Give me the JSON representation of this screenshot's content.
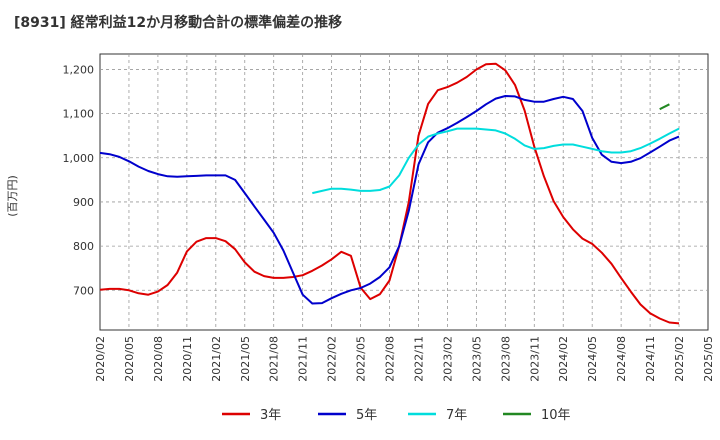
{
  "title": "[8931]  経常利益12か月移動合計の標準偏差の推移",
  "chart_data": {
    "type": "line",
    "title": "[8931]  経常利益12か月移動合計の標準偏差の推移",
    "ylabel": "(百万円)",
    "ylim": [
      610,
      1235
    ],
    "yticks": [
      700,
      800,
      900,
      1000,
      1100,
      1200
    ],
    "ytick_labels": [
      "700",
      "800",
      "900",
      "1,000",
      "1,100",
      "1,200"
    ],
    "x_ticks": [
      "2020/02",
      "2020/05",
      "2020/08",
      "2020/11",
      "2021/02",
      "2021/05",
      "2021/08",
      "2021/11",
      "2022/02",
      "2022/05",
      "2022/08",
      "2022/11",
      "2023/02",
      "2023/05",
      "2023/08",
      "2023/11",
      "2024/02",
      "2024/05",
      "2024/08",
      "2024/11",
      "2025/02",
      "2025/05"
    ],
    "x_start": "2020/02",
    "x_months": 63,
    "grid": true,
    "legend_position": "bottom",
    "series": [
      {
        "name": "3年",
        "color": "#dd0000",
        "start": "2020/02",
        "values": [
          701,
          703,
          703,
          700,
          693,
          690,
          697,
          712,
          740,
          788,
          810,
          818,
          818,
          811,
          793,
          763,
          742,
          732,
          728,
          728,
          730,
          734,
          744,
          756,
          770,
          787,
          778,
          706,
          680,
          691,
          722,
          800,
          900,
          1050,
          1122,
          1153,
          1160,
          1170,
          1183,
          1200,
          1212,
          1213,
          1198,
          1165,
          1107,
          1025,
          958,
          902,
          866,
          838,
          817,
          805,
          785,
          760,
          728,
          697,
          668,
          648,
          636,
          627,
          625
        ]
      },
      {
        "name": "5年",
        "color": "#0000cc",
        "start": "2020/02",
        "values": [
          1011,
          1008,
          1002,
          992,
          980,
          970,
          963,
          958,
          957,
          958,
          959,
          960,
          960,
          960,
          950,
          920,
          890,
          860,
          830,
          790,
          740,
          690,
          670,
          671,
          682,
          692,
          700,
          705,
          715,
          730,
          752,
          800,
          880,
          985,
          1035,
          1057,
          1067,
          1079,
          1092,
          1106,
          1121,
          1134,
          1140,
          1139,
          1131,
          1127,
          1127,
          1133,
          1138,
          1133,
          1106,
          1045,
          1007,
          991,
          988,
          991,
          999,
          1012,
          1025,
          1039,
          1048
        ]
      },
      {
        "name": "7年",
        "color": "#00dddd",
        "start": "2021/12",
        "values": [
          920,
          925,
          930,
          930,
          928,
          925,
          925,
          927,
          935,
          960,
          1000,
          1030,
          1048,
          1055,
          1060,
          1066,
          1066,
          1066,
          1064,
          1062,
          1055,
          1043,
          1028,
          1020,
          1022,
          1027,
          1030,
          1030,
          1025,
          1020,
          1015,
          1012,
          1012,
          1015,
          1022,
          1032,
          1043,
          1055,
          1066
        ]
      },
      {
        "name": "10年",
        "color": "#228822",
        "start": "2024/12",
        "values": [
          1110,
          1121
        ]
      }
    ]
  }
}
